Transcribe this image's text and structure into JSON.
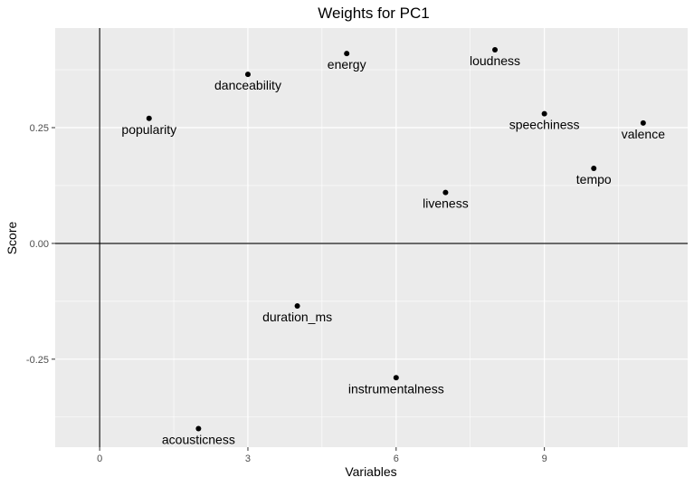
{
  "chart_data": {
    "type": "scatter",
    "title": "Weights for PC1",
    "xlabel": "Variables",
    "ylabel": "Score",
    "xlim": [
      -0.9,
      11.9
    ],
    "ylim": [
      -0.44,
      0.465
    ],
    "x_ticks": [
      0,
      3,
      6,
      9
    ],
    "x_tick_labels": [
      "0",
      "3",
      "6",
      "9"
    ],
    "y_ticks": [
      -0.25,
      0,
      0.25
    ],
    "y_tick_labels": [
      "-0.25",
      "0.00",
      "0.25"
    ],
    "grid": true,
    "reference_lines": {
      "x": 0,
      "y": 0
    },
    "colors": {
      "panel": "#ebebeb",
      "grid": "#ffffff",
      "point": "#000000",
      "reference": "#000000"
    },
    "points": [
      {
        "x": 1,
        "y": 0.27,
        "label": "popularity"
      },
      {
        "x": 2,
        "y": -0.4,
        "label": "acousticness"
      },
      {
        "x": 3,
        "y": 0.365,
        "label": "danceability"
      },
      {
        "x": 4,
        "y": -0.135,
        "label": "duration_ms"
      },
      {
        "x": 5,
        "y": 0.41,
        "label": "energy"
      },
      {
        "x": 6,
        "y": -0.29,
        "label": "instrumentalness"
      },
      {
        "x": 7,
        "y": 0.11,
        "label": "liveness"
      },
      {
        "x": 8,
        "y": 0.418,
        "label": "loudness"
      },
      {
        "x": 9,
        "y": 0.28,
        "label": "speechiness"
      },
      {
        "x": 10,
        "y": 0.162,
        "label": "tempo"
      },
      {
        "x": 11,
        "y": 0.26,
        "label": "valence"
      }
    ]
  }
}
